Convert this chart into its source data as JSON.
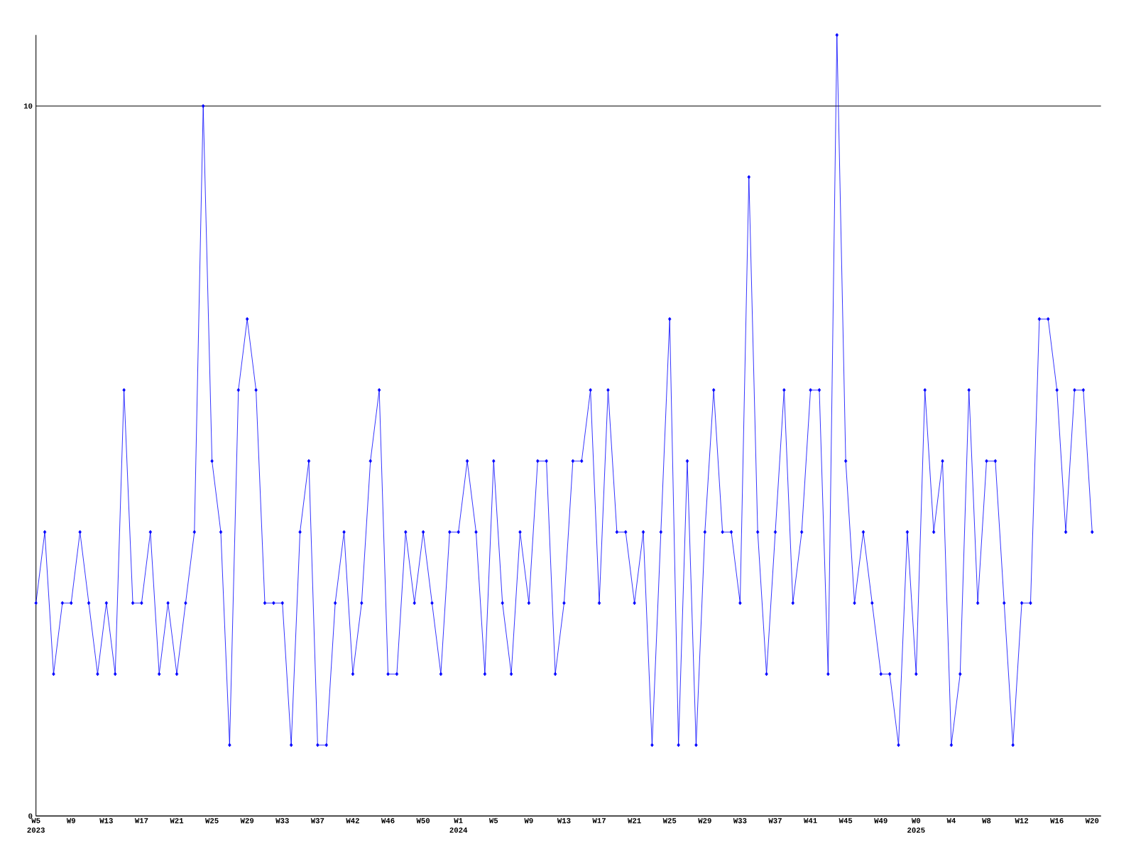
{
  "chart_data": {
    "type": "line",
    "color": "#0000ff",
    "marker": "diamond",
    "grid": "y",
    "ylim": [
      0,
      11
    ],
    "yticks": [
      0,
      10
    ],
    "categories": [
      "W5 2023",
      null,
      null,
      null,
      "W9",
      null,
      null,
      null,
      "W13",
      null,
      null,
      null,
      "W17",
      null,
      null,
      null,
      "W21",
      null,
      null,
      null,
      "W25",
      null,
      null,
      null,
      "W29",
      null,
      null,
      null,
      "W33",
      null,
      null,
      null,
      "W37",
      null,
      null,
      null,
      "W42",
      null,
      null,
      null,
      "W46",
      null,
      null,
      null,
      "W50",
      null,
      null,
      null,
      "W1 2024",
      null,
      null,
      null,
      "W5",
      null,
      null,
      null,
      "W9",
      null,
      null,
      null,
      "W13",
      null,
      null,
      null,
      "W17",
      null,
      null,
      null,
      "W21",
      null,
      null,
      null,
      "W25",
      null,
      null,
      null,
      "W29",
      null,
      null,
      null,
      "W33",
      null,
      null,
      null,
      "W37",
      null,
      null,
      null,
      "W41",
      null,
      null,
      null,
      "W45",
      null,
      null,
      null,
      "W49",
      null,
      null,
      null,
      "W0 2025",
      null,
      null,
      null,
      "W4",
      null,
      null,
      null,
      "W8",
      null,
      null,
      null,
      "W12",
      null,
      null,
      null,
      "W16",
      null,
      null,
      null,
      "W20"
    ],
    "values": [
      3,
      4,
      2,
      3,
      3,
      4,
      3,
      2,
      3,
      2,
      6,
      3,
      3,
      4,
      2,
      3,
      2,
      3,
      4,
      10,
      5,
      4,
      1,
      6,
      7,
      6,
      3,
      3,
      3,
      1,
      4,
      5,
      1,
      1,
      3,
      4,
      2,
      3,
      5,
      6,
      2,
      2,
      4,
      3,
      4,
      3,
      2,
      4,
      4,
      5,
      4,
      2,
      5,
      3,
      2,
      4,
      3,
      5,
      5,
      2,
      3,
      5,
      5,
      6,
      3,
      6,
      4,
      4,
      3,
      4,
      1,
      4,
      7,
      1,
      5,
      1,
      4,
      6,
      4,
      4,
      3,
      9,
      4,
      2,
      4,
      6,
      3,
      4,
      6,
      6,
      2,
      11,
      5,
      3,
      4,
      3,
      2,
      2,
      1,
      4,
      2,
      6,
      4,
      5,
      1,
      2,
      6,
      3,
      5,
      5,
      3,
      1,
      3,
      3,
      7,
      7,
      6,
      4,
      6,
      6,
      4
    ]
  }
}
